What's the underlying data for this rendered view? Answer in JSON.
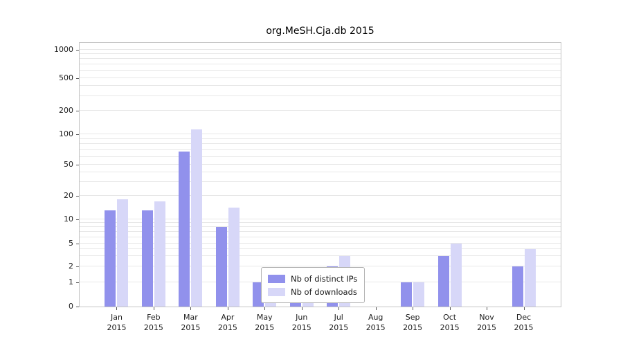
{
  "chart_data": {
    "type": "bar",
    "title": "org.MeSH.Cja.db 2015",
    "categories": [
      "Jan 2015",
      "Feb 2015",
      "Mar 2015",
      "Apr 2015",
      "May 2015",
      "Jun 2015",
      "Jul 2015",
      "Aug 2015",
      "Sep 2015",
      "Oct 2015",
      "Nov 2015",
      "Dec 2015"
    ],
    "month_labels": [
      "Jan",
      "Feb",
      "Mar",
      "Apr",
      "May",
      "Jun",
      "Jul",
      "Aug",
      "Sep",
      "Oct",
      "Nov",
      "Dec"
    ],
    "year_label": "2015",
    "series": [
      {
        "name": "Nb of distinct IPs",
        "color": "#9191ec",
        "values": [
          13,
          13,
          68,
          8,
          1,
          1,
          2,
          0,
          1,
          3,
          0,
          2
        ]
      },
      {
        "name": "Nb of downloads",
        "color": "#d7d7f8",
        "values": [
          18,
          17,
          115,
          14,
          1,
          1,
          3,
          0,
          1,
          5,
          0,
          4
        ]
      }
    ],
    "yticks": [
      0,
      1,
      2,
      5,
      10,
      20,
      50,
      100,
      200,
      500,
      1000
    ],
    "xlabel": "",
    "ylabel": "",
    "yscale": "log-like",
    "ylim": [
      0,
      1000
    ],
    "grid": "horizontal-minor-log",
    "legend_position": "inside-bottom-center",
    "grid_color": "#e7e7e7",
    "axis_border_color": "#c3c3c3"
  }
}
